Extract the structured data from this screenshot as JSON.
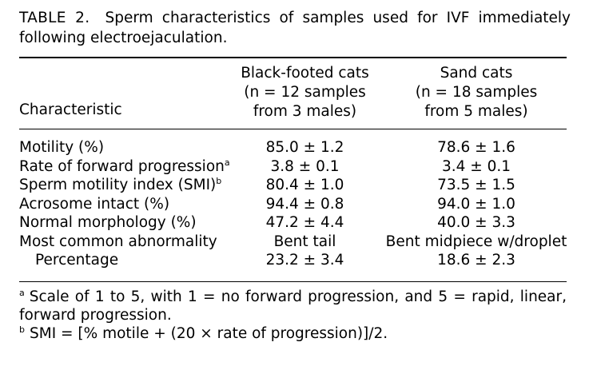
{
  "caption": {
    "label": "TABLE 2.",
    "text": "Sperm characteristics of samples used for IVF immediately following electroejaculation."
  },
  "header": {
    "characteristic": "Characteristic",
    "col2": [
      "Black-footed cats",
      "(n = 12 samples",
      "from 3 males)"
    ],
    "col3": [
      "Sand cats",
      "(n = 18 samples",
      "from 5 males)"
    ]
  },
  "rows": [
    {
      "label": "Motility (%)",
      "sup": "",
      "bf": "85.0 ± 1.2",
      "sand": "78.6 ± 1.6"
    },
    {
      "label": "Rate of forward progression",
      "sup": "a",
      "bf": "3.8 ± 0.1",
      "sand": "3.4 ± 0.1"
    },
    {
      "label": "Sperm motility index (SMI)",
      "sup": "b",
      "bf": "80.4 ± 1.0",
      "sand": "73.5 ± 1.5"
    },
    {
      "label": "Acrosome intact (%)",
      "sup": "",
      "bf": "94.4 ± 0.8",
      "sand": "94.0 ± 1.0"
    },
    {
      "label": "Normal morphology (%)",
      "sup": "",
      "bf": "47.2 ± 4.4",
      "sand": "40.0 ± 3.3"
    },
    {
      "label": "Most common abnormality",
      "sup": "",
      "bf": "Bent tail",
      "sand": "Bent midpiece w/droplet"
    },
    {
      "label": "Percentage",
      "sup": "",
      "bf": "23.2 ± 3.4",
      "sand": "18.6 ± 2.3"
    }
  ],
  "footnotes": {
    "a_mark": "a",
    "a_text": "Scale of 1 to 5, with 1 = no forward progression, and 5 = rapid, linear, forward progression.",
    "b_mark": "b",
    "b_text": "SMI = [% motile + (20 × rate of progression)]/2."
  }
}
